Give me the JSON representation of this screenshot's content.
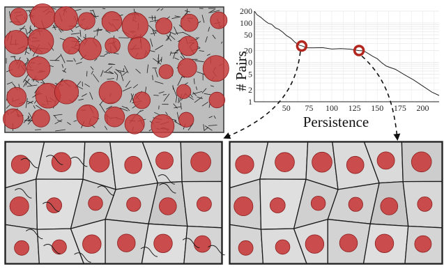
{
  "chart_data": {
    "type": "line",
    "title": "",
    "xlabel": "Persistence",
    "ylabel": "# Pairs",
    "xlim": [
      15,
      218
    ],
    "ylim": [
      1,
      200
    ],
    "y_scale": "log",
    "grid": true,
    "x_ticks": [
      50,
      75,
      100,
      125,
      150,
      175,
      200
    ],
    "x_tick_labels": [
      "50",
      "75",
      "100",
      "125",
      "150",
      "175",
      "200"
    ],
    "y_ticks": [
      1,
      2,
      5,
      10,
      20,
      50,
      100,
      200
    ],
    "y_tick_labels": [
      "1",
      "2",
      "5",
      "10",
      "20",
      "50",
      "100",
      "200"
    ],
    "series": [
      {
        "x": [
          15,
          18,
          22,
          26,
          30,
          34,
          38,
          42,
          46,
          50,
          55,
          60,
          64,
          68,
          72,
          80,
          90,
          100,
          110,
          120,
          130,
          135,
          140,
          145,
          150,
          155,
          160,
          170,
          180,
          190,
          200,
          210,
          218
        ],
        "y": [
          200,
          165,
          135,
          118,
          100,
          90,
          78,
          68,
          58,
          50,
          40,
          32,
          28,
          25,
          24,
          23.5,
          23,
          22.5,
          22,
          21.5,
          20.5,
          19,
          17,
          14.5,
          12,
          10,
          8,
          6.5,
          5,
          3.5,
          2.5,
          1.8,
          1.4
        ]
      }
    ],
    "markers": [
      {
        "x": 67,
        "y": 26
      },
      {
        "x": 130,
        "y": 20
      }
    ]
  },
  "colors": {
    "marker": "#b3261e",
    "line": "#222222",
    "nucleus_fill": "#c83c3c",
    "cell_fill": "#c9c9c9",
    "boundary": "#1a1a1a"
  },
  "panels": {
    "top_left": {
      "description_icon": "oversegmented-microscopy-icon"
    },
    "bottom_left": {
      "description_icon": "segmentation-low-threshold-icon"
    },
    "bottom_right": {
      "description_icon": "segmentation-high-threshold-icon"
    }
  }
}
